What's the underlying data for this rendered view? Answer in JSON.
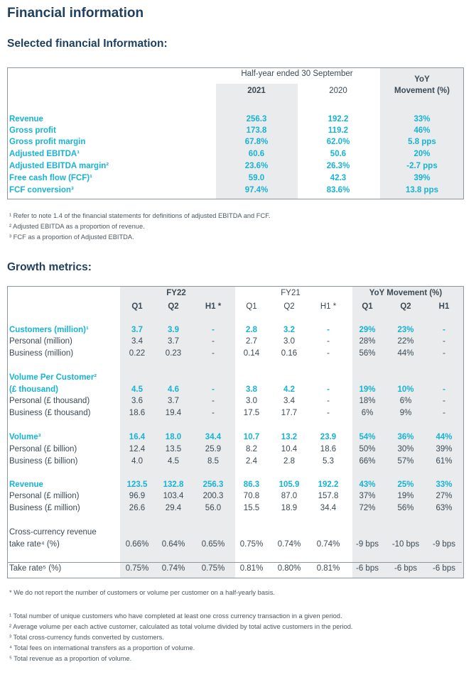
{
  "title": "Financial information",
  "selected": {
    "heading": "Selected financial Information:",
    "period_header": "Half-year ended 30 September",
    "yoy_header_line1": "YoY",
    "yoy_header_line2": "Movement (%)",
    "col_2021": "2021",
    "col_2020": "2020",
    "rows": [
      {
        "label": "Revenue",
        "v2021": "256.3",
        "v2020": "192.2",
        "yoy": "33%"
      },
      {
        "label": "Gross profit",
        "v2021": "173.8",
        "v2020": "119.2",
        "yoy": "46%"
      },
      {
        "label": "Gross profit margin",
        "v2021": "67.8%",
        "v2020": "62.0%",
        "yoy": "5.8 pps"
      },
      {
        "label": "Adjusted EBITDA¹",
        "v2021": "60.6",
        "v2020": "50.6",
        "yoy": "20%"
      },
      {
        "label": "Adjusted EBITDA margin²",
        "v2021": "23.6%",
        "v2020": "26.3%",
        "yoy": "-2.7 pps"
      },
      {
        "label": "Free cash flow (FCF)¹",
        "v2021": "59.0",
        "v2020": "42.3",
        "yoy": "39%"
      },
      {
        "label": "FCF conversion³",
        "v2021": "97.4%",
        "v2020": "83.6%",
        "yoy": "13.8 pps"
      }
    ],
    "footnotes": [
      "¹ Refer to note 1.4 of the financial statements for definitions of adjusted EBITDA and FCF.",
      "² Adjusted EBITDA as a proportion of revenue.",
      "³ FCF as a proportion of Adjusted EBITDA."
    ]
  },
  "growth": {
    "heading": "Growth metrics:",
    "groups": [
      "FY22",
      "FY21",
      "YoY Movement (%)"
    ],
    "columns": [
      "Q1",
      "Q2",
      "H1 *",
      "Q1",
      "Q2",
      "H1 *",
      "Q1",
      "Q2",
      "H1"
    ],
    "sections": [
      {
        "rows": [
          {
            "label": "Customers (million)¹",
            "main": true,
            "values": [
              "3.7",
              "3.9",
              "-",
              "2.8",
              "3.2",
              "-",
              "29%",
              "23%",
              "-"
            ]
          },
          {
            "label": "Personal (million)",
            "main": false,
            "values": [
              "3.4",
              "3.7",
              "-",
              "2.7",
              "3.0",
              "-",
              "28%",
              "22%",
              "-"
            ]
          },
          {
            "label": "Business (million)",
            "main": false,
            "values": [
              "0.22",
              "0.23",
              "-",
              "0.14",
              "0.16",
              "-",
              "56%",
              "44%",
              "-"
            ]
          }
        ]
      },
      {
        "label_line1": "Volume Per Customer²",
        "rows": [
          {
            "label": "(£ thousand)",
            "main": true,
            "values": [
              "4.5",
              "4.6",
              "-",
              "3.8",
              "4.2",
              "-",
              "19%",
              "10%",
              "-"
            ]
          },
          {
            "label": "Personal (£ thousand)",
            "main": false,
            "values": [
              "3.6",
              "3.7",
              "-",
              "3.0",
              "3.4",
              "-",
              "18%",
              "6%",
              "-"
            ]
          },
          {
            "label": "Business (£ thousand)",
            "main": false,
            "values": [
              "18.6",
              "19.4",
              "-",
              "17.5",
              "17.7",
              "-",
              "6%",
              "9%",
              "-"
            ]
          }
        ]
      },
      {
        "rows": [
          {
            "label": "Volume³",
            "main": true,
            "values": [
              "16.4",
              "18.0",
              "34.4",
              "10.7",
              "13.2",
              "23.9",
              "54%",
              "36%",
              "44%"
            ]
          },
          {
            "label": "Personal (£ billion)",
            "main": false,
            "values": [
              "12.4",
              "13.5",
              "25.9",
              "8.2",
              "10.4",
              "18.6",
              "50%",
              "30%",
              "39%"
            ]
          },
          {
            "label": "Business (£ billion)",
            "main": false,
            "values": [
              "4.0",
              "4.5",
              "8.5",
              "2.4",
              "2.8",
              "5.3",
              "66%",
              "57%",
              "61%"
            ]
          }
        ]
      },
      {
        "rows": [
          {
            "label": "Revenue",
            "main": true,
            "values": [
              "123.5",
              "132.8",
              "256.3",
              "86.3",
              "105.9",
              "192.2",
              "43%",
              "25%",
              "33%"
            ]
          },
          {
            "label": "Personal (£ million)",
            "main": false,
            "values": [
              "96.9",
              "103.4",
              "200.3",
              "70.8",
              "87.0",
              "157.8",
              "37%",
              "19%",
              "27%"
            ]
          },
          {
            "label": "Business (£ million)",
            "main": false,
            "values": [
              "26.6",
              "29.4",
              "56.0",
              "15.5",
              "18.9",
              "34.4",
              "72%",
              "56%",
              "63%"
            ]
          }
        ]
      }
    ],
    "take_rate_cross": {
      "label_line1": "Cross-currency revenue",
      "label_line2": "take rate⁴ (%)",
      "values": [
        "0.66%",
        "0.64%",
        "0.65%",
        "0.75%",
        "0.74%",
        "0.74%",
        "-9 bps",
        "-10 bps",
        "-9 bps"
      ]
    },
    "take_rate": {
      "label": "Take rate⁵ (%)",
      "values": [
        "0.75%",
        "0.74%",
        "0.75%",
        "0.81%",
        "0.80%",
        "0.81%",
        "-6 bps",
        "-6 bps",
        "-6 bps"
      ]
    },
    "note": "* We do not report the number of customers or volume per customer on a half-yearly basis.",
    "footnotes": [
      "¹ Total number of unique customers who have completed at least one cross currency transaction in a given period.",
      "² Average volume per each active customer, calculated as total volume divided by total active customers in the period.",
      "³ Total cross-currency funds converted by customers.",
      "⁴ Total fees on international transfers as a proportion of volume.",
      "⁵ Total revenue as a proportion of volume."
    ]
  }
}
